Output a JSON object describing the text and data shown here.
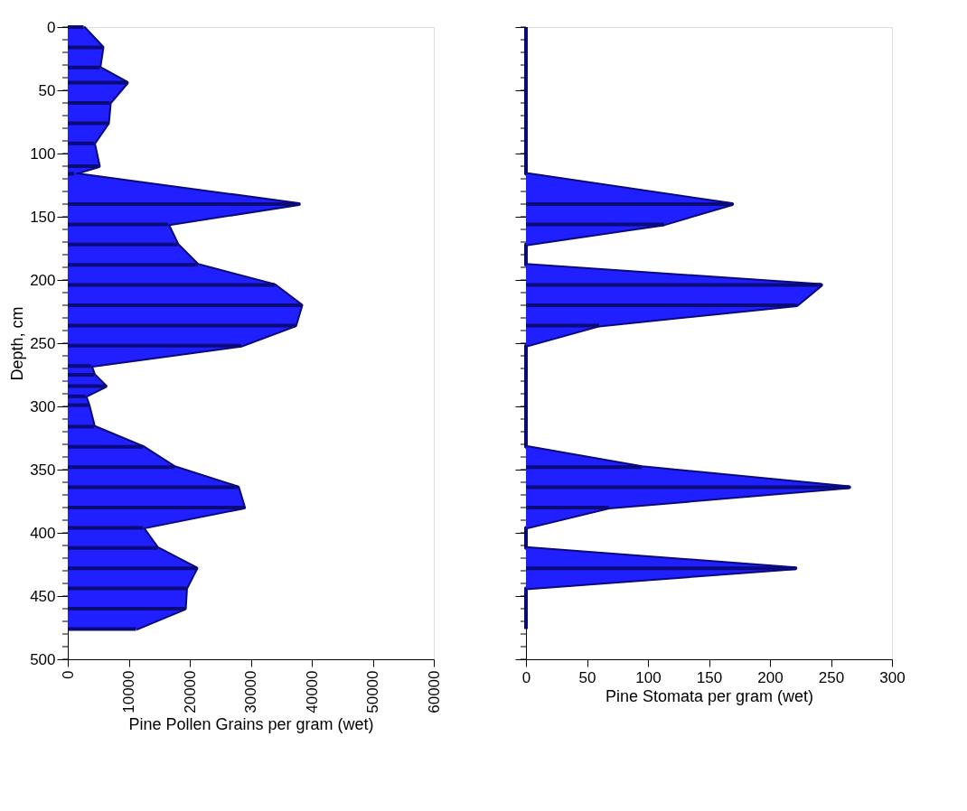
{
  "chart_data": [
    {
      "type": "area",
      "orientation": "horizontal",
      "xlabel": "Pine Pollen Grains per gram (wet)",
      "ylabel": "Depth, cm",
      "x": [
        0,
        16,
        32,
        44,
        60,
        76,
        92,
        110,
        116,
        140,
        156,
        172,
        188,
        204,
        220,
        236,
        252,
        268,
        275,
        284,
        292,
        299,
        316,
        332,
        348,
        364,
        380,
        396,
        412,
        428,
        444,
        460,
        476
      ],
      "series": [
        {
          "color": "#1f1fff",
          "values": [
            2600,
            5700,
            5200,
            9700,
            6900,
            6600,
            4300,
            5100,
            1000,
            37900,
            16400,
            18000,
            21300,
            33900,
            38300,
            37300,
            28400,
            3800,
            4300,
            6200,
            2900,
            3400,
            4300,
            12300,
            17500,
            27900,
            28900,
            12300,
            14700,
            21100,
            19400,
            19200,
            11200
          ]
        },
        {
          "type": "bar",
          "color": "#0a0a78",
          "values": [
            2600,
            5700,
            5200,
            9700,
            6900,
            6600,
            4300,
            5100,
            1000,
            37900,
            16400,
            18000,
            21300,
            33900,
            38300,
            37300,
            28400,
            3800,
            4300,
            6200,
            2900,
            3400,
            4300,
            12300,
            17500,
            27900,
            28900,
            12300,
            14700,
            21100,
            19400,
            19200,
            11200
          ]
        }
      ],
      "xlim": [
        0,
        60000
      ],
      "xticks": [
        0,
        10000,
        20000,
        30000,
        40000,
        50000,
        60000
      ],
      "ylim": [
        500,
        0
      ],
      "yticks": [
        0,
        50,
        100,
        150,
        200,
        250,
        300,
        350,
        400,
        450,
        500
      ],
      "grid": false
    },
    {
      "type": "area",
      "orientation": "horizontal",
      "xlabel": "Pine Stomata per gram (wet)",
      "x": [
        0,
        16,
        32,
        44,
        60,
        76,
        92,
        110,
        116,
        140,
        156,
        172,
        188,
        204,
        220,
        236,
        252,
        268,
        275,
        284,
        292,
        299,
        316,
        332,
        348,
        364,
        380,
        396,
        412,
        428,
        444,
        460,
        476
      ],
      "series": [
        {
          "color": "#1f1fff",
          "values": [
            0,
            0,
            0,
            0,
            0,
            0,
            0,
            0,
            0,
            169,
            113,
            0,
            0,
            242,
            222,
            60,
            0,
            0,
            0,
            0,
            0,
            0,
            0,
            0,
            95,
            265,
            68,
            0,
            0,
            221,
            0,
            0,
            0
          ]
        },
        {
          "type": "bar",
          "color": "#0a0a78",
          "values": [
            0,
            0,
            0,
            0,
            0,
            0,
            0,
            0,
            0,
            169,
            113,
            0,
            0,
            242,
            222,
            60,
            0,
            0,
            0,
            0,
            0,
            0,
            0,
            0,
            95,
            265,
            68,
            0,
            0,
            221,
            0,
            0,
            0
          ]
        }
      ],
      "xlim": [
        0,
        300
      ],
      "xticks": [
        0,
        50,
        100,
        150,
        200,
        250,
        300
      ],
      "ylim": [
        500,
        0
      ],
      "yticks": [
        0,
        50,
        100,
        150,
        200,
        250,
        300,
        350,
        400,
        450,
        500
      ],
      "tick_labels": "x",
      "grid": false
    }
  ]
}
